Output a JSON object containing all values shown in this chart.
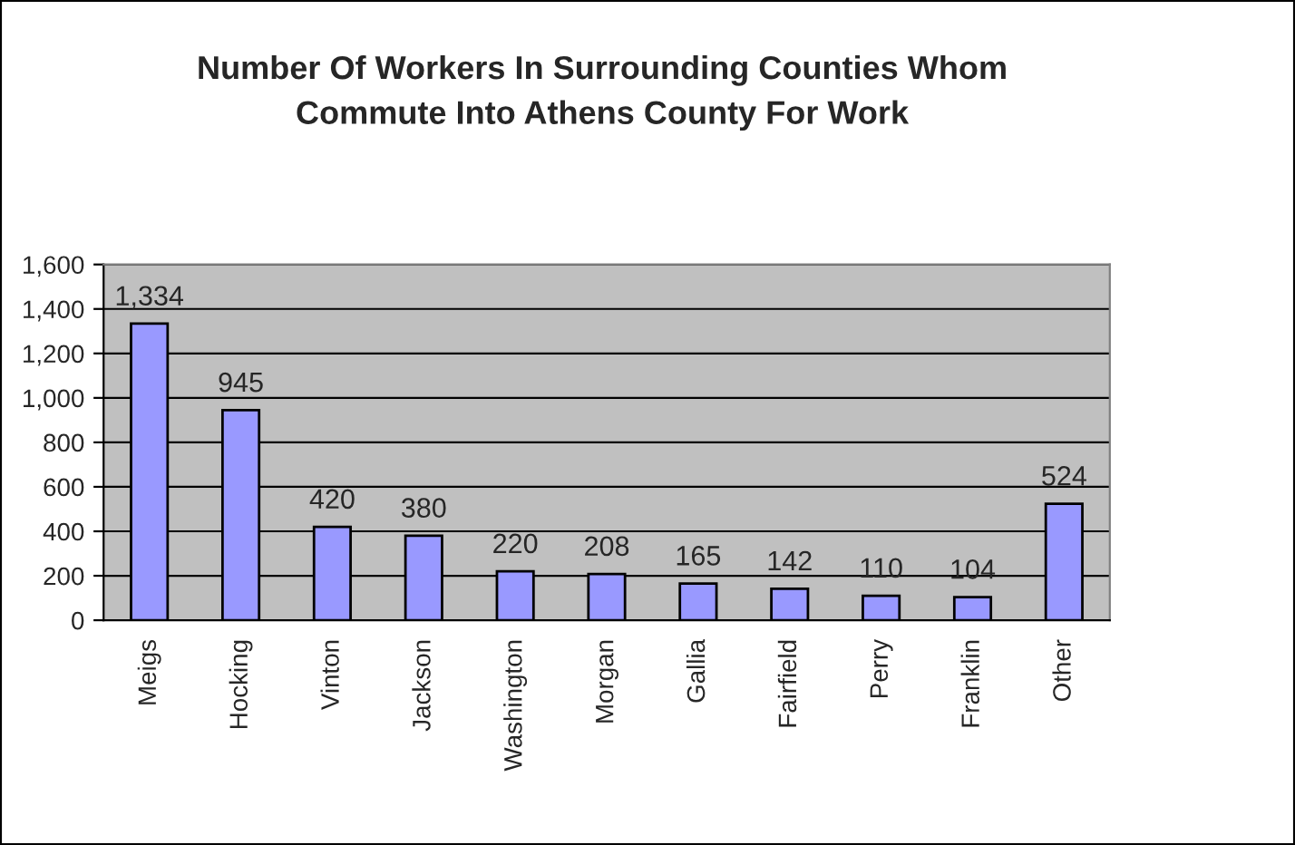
{
  "chart_data": {
    "type": "bar",
    "title": "Number Of Workers In Surrounding Counties Whom\nCommute Into Athens County For Work",
    "categories": [
      "Meigs",
      "Hocking",
      "Vinton",
      "Jackson",
      "Washington",
      "Morgan",
      "Gallia",
      "Fairfield",
      "Perry",
      "Franklin",
      "Other"
    ],
    "values": [
      1334,
      945,
      420,
      380,
      220,
      208,
      165,
      142,
      110,
      104,
      524
    ],
    "value_labels": [
      "1,334",
      "945",
      "420",
      "380",
      "220",
      "208",
      "165",
      "142",
      "110",
      "104",
      "524"
    ],
    "color": "#9999ff",
    "ylim": [
      0,
      1600
    ],
    "yticks": [
      0,
      200,
      400,
      600,
      800,
      {
        "value": 1000,
        "label": "1,000"
      },
      {
        "value": 1200,
        "label": "1,200"
      },
      {
        "value": 1400,
        "label": "1,400"
      },
      {
        "value": 1600,
        "label": "1,600"
      }
    ],
    "grid": "y",
    "legend": false
  }
}
